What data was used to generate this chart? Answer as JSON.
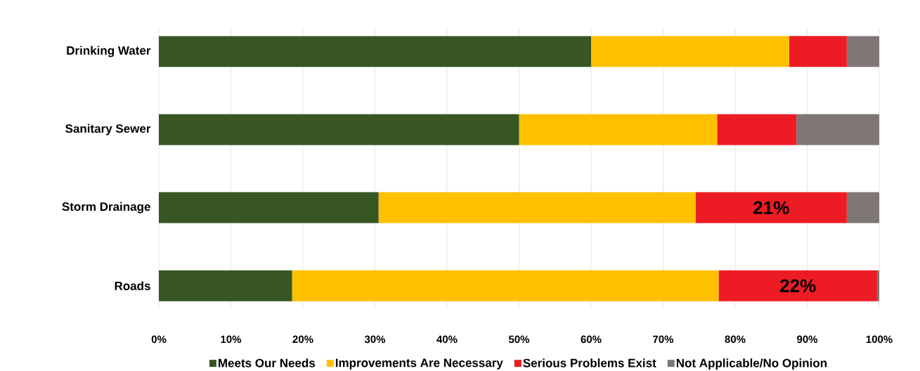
{
  "chart_data": {
    "type": "bar",
    "orientation": "horizontal",
    "stacked": true,
    "categories": [
      "Drinking Water",
      "Sanitary Sewer",
      "Storm Drainage",
      "Roads"
    ],
    "series": [
      {
        "name": "Meets Our Needs",
        "color": "#375623",
        "values": [
          60,
          50,
          30.5,
          18.5
        ]
      },
      {
        "name": "Improvements Are Necessary",
        "color": "#ffc000",
        "values": [
          27.5,
          27.5,
          44,
          59.2
        ]
      },
      {
        "name": "Serious Problems Exist",
        "color": "#ed1c24",
        "values": [
          8,
          11,
          21,
          22
        ],
        "value_labels": [
          null,
          null,
          "21%",
          "22%"
        ]
      },
      {
        "name": "Not Applicable/No Opinion",
        "color": "#7f7676",
        "values": [
          4.5,
          11.5,
          4.5,
          0.3
        ]
      }
    ],
    "xlim": [
      0,
      100
    ],
    "xticks": [
      {
        "value": 0,
        "label": "0%"
      },
      {
        "value": 10,
        "label": "10%"
      },
      {
        "value": 20,
        "label": "20%"
      },
      {
        "value": 30,
        "label": "30%"
      },
      {
        "value": 40,
        "label": "40%"
      },
      {
        "value": 50,
        "label": "50%"
      },
      {
        "value": 60,
        "label": "60%"
      },
      {
        "value": 70,
        "label": "70%"
      },
      {
        "value": 80,
        "label": "80%"
      },
      {
        "value": 90,
        "label": "90%"
      },
      {
        "value": 100,
        "label": "100%"
      }
    ],
    "grid": "x",
    "legend": "bottom"
  }
}
